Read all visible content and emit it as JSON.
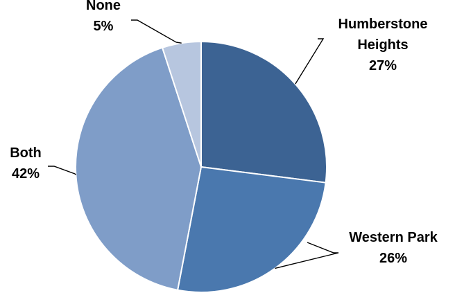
{
  "chart_data": {
    "type": "pie",
    "title": "",
    "legend": "none",
    "slices": [
      {
        "name": "Humberstone Heights",
        "value": 27,
        "percent_label": "27%",
        "color": "#3c6393"
      },
      {
        "name": "Western Park",
        "value": 26,
        "percent_label": "26%",
        "color": "#4a78ae"
      },
      {
        "name": "Both",
        "value": 42,
        "percent_label": "42%",
        "color": "#7f9dc8"
      },
      {
        "name": "None",
        "value": 5,
        "percent_label": "5%",
        "color": "#b7c6df"
      }
    ],
    "label_lines": [
      [
        "Humberstone",
        "Heights",
        "27%"
      ],
      [
        "Western Park",
        "26%"
      ],
      [
        "Both",
        "42%"
      ],
      [
        "None",
        "5%"
      ]
    ]
  }
}
